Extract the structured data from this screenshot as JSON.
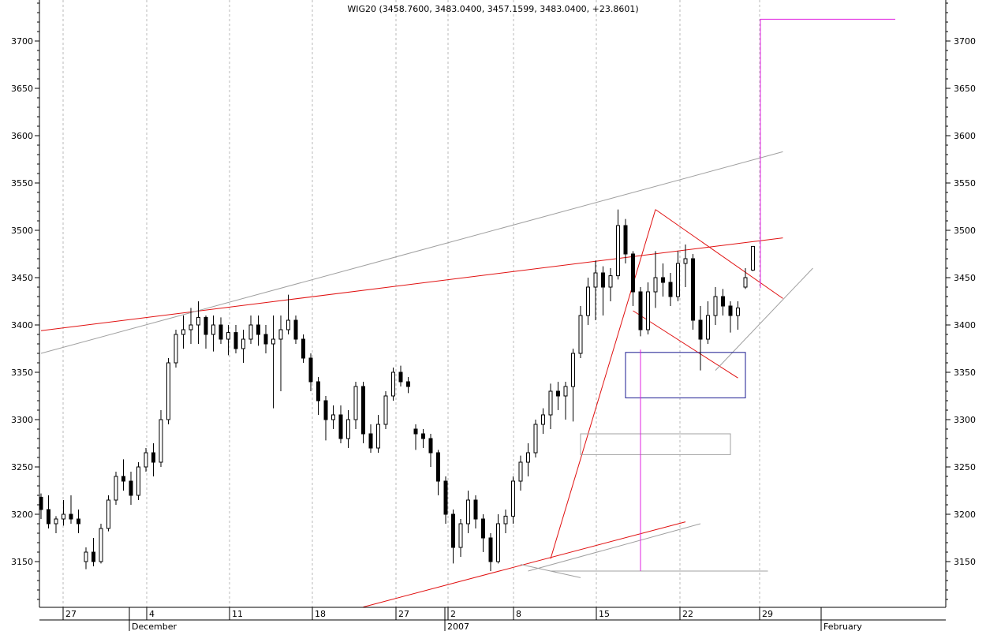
{
  "chart_data": {
    "type": "candlestick",
    "title": "WIG20 (3458.7600, 3483.0400, 3457.1599, 3483.0400, +23.8601)",
    "ylim": [
      3100,
      3750
    ],
    "y_ticks": [
      3150,
      3200,
      3250,
      3300,
      3350,
      3400,
      3450,
      3500,
      3550,
      3600,
      3650,
      3700
    ],
    "x_day_ticks": [
      "27",
      "4",
      "11",
      "18",
      "27",
      "2",
      "8",
      "15",
      "22",
      "29"
    ],
    "x_month_labels": [
      "December",
      "2007",
      "February"
    ],
    "grid": "vertical-dashed",
    "colors": {
      "price": "#000000",
      "trendline_red": "#e01010",
      "trendline_gray": "#a0a0a0",
      "box_blue": "#1a1a90",
      "magenta": "#e020e0"
    },
    "trend_lines": [
      {
        "color": "red",
        "from": [
          0,
          3394
        ],
        "to": [
          99,
          3492
        ]
      },
      {
        "color": "red",
        "from": [
          43,
          3102
        ],
        "to": [
          86,
          3192
        ]
      },
      {
        "color": "red",
        "from": [
          68,
          3153
        ],
        "to": [
          82,
          3522
        ]
      },
      {
        "color": "red",
        "from": [
          82,
          3522
        ],
        "to": [
          99,
          3428
        ]
      },
      {
        "color": "red",
        "from": [
          79,
          3415
        ],
        "to": [
          93,
          3344
        ]
      },
      {
        "color": "gray",
        "from": [
          0,
          3370
        ],
        "to": [
          99,
          3583
        ]
      },
      {
        "color": "gray",
        "from": [
          90,
          3352
        ],
        "to": [
          103,
          3460
        ]
      },
      {
        "color": "gray",
        "from": [
          65,
          3140
        ],
        "to": [
          88,
          3190
        ]
      },
      {
        "color": "gray",
        "from": [
          64,
          3147
        ],
        "to": [
          72,
          3133
        ]
      },
      {
        "color": "gray",
        "from": [
          68,
          3140
        ],
        "to": [
          97,
          3140
        ]
      }
    ],
    "boxes": [
      {
        "color": "blue",
        "x": [
          78,
          94
        ],
        "y": [
          3323,
          3371
        ]
      },
      {
        "color": "gray",
        "x": [
          72,
          92
        ],
        "y": [
          3263,
          3285
        ]
      }
    ],
    "projections": [
      {
        "color": "magenta",
        "points": [
          [
            80,
            3140
          ],
          [
            80,
            3374
          ]
        ]
      },
      {
        "color": "magenta",
        "points": [
          [
            96,
            3439
          ],
          [
            96,
            3723
          ],
          [
            114,
            3723
          ]
        ]
      }
    ],
    "series": [
      {
        "values": [
          [
            3218,
            3222,
            3195,
            3205
          ],
          [
            3205,
            3220,
            3185,
            3190
          ],
          [
            3190,
            3198,
            3180,
            3195
          ],
          [
            3195,
            3215,
            3188,
            3200
          ],
          [
            3200,
            3220,
            3190,
            3195
          ],
          [
            3195,
            3205,
            3180,
            3190
          ],
          [
            3150,
            3165,
            3142,
            3160
          ],
          [
            3160,
            3175,
            3145,
            3150
          ],
          [
            3150,
            3190,
            3148,
            3185
          ],
          [
            3185,
            3220,
            3182,
            3215
          ],
          [
            3215,
            3245,
            3210,
            3240
          ],
          [
            3240,
            3258,
            3225,
            3235
          ],
          [
            3235,
            3245,
            3210,
            3220
          ],
          [
            3220,
            3255,
            3215,
            3250
          ],
          [
            3250,
            3270,
            3245,
            3265
          ],
          [
            3265,
            3275,
            3240,
            3255
          ],
          [
            3255,
            3310,
            3250,
            3300
          ],
          [
            3300,
            3365,
            3295,
            3360
          ],
          [
            3360,
            3395,
            3355,
            3390
          ],
          [
            3390,
            3410,
            3375,
            3395
          ],
          [
            3395,
            3418,
            3380,
            3400
          ],
          [
            3400,
            3425,
            3380,
            3408
          ],
          [
            3408,
            3410,
            3375,
            3390
          ],
          [
            3390,
            3410,
            3372,
            3400
          ],
          [
            3400,
            3408,
            3380,
            3385
          ],
          [
            3385,
            3400,
            3368,
            3392
          ],
          [
            3392,
            3400,
            3370,
            3375
          ],
          [
            3375,
            3395,
            3360,
            3385
          ],
          [
            3385,
            3410,
            3380,
            3400
          ],
          [
            3400,
            3410,
            3378,
            3390
          ],
          [
            3390,
            3400,
            3370,
            3380
          ],
          [
            3380,
            3410,
            3312,
            3385
          ],
          [
            3385,
            3410,
            3330,
            3395
          ],
          [
            3395,
            3432,
            3390,
            3405
          ],
          [
            3405,
            3410,
            3380,
            3385
          ],
          [
            3385,
            3390,
            3360,
            3365
          ],
          [
            3365,
            3370,
            3330,
            3340
          ],
          [
            3340,
            3345,
            3305,
            3320
          ],
          [
            3320,
            3325,
            3278,
            3300
          ],
          [
            3300,
            3315,
            3290,
            3305
          ],
          [
            3305,
            3315,
            3275,
            3280
          ],
          [
            3280,
            3310,
            3270,
            3300
          ],
          [
            3300,
            3340,
            3290,
            3335
          ],
          [
            3335,
            3340,
            3275,
            3285
          ],
          [
            3285,
            3295,
            3265,
            3270
          ],
          [
            3270,
            3305,
            3265,
            3295
          ],
          [
            3295,
            3330,
            3290,
            3325
          ],
          [
            3325,
            3355,
            3320,
            3350
          ],
          [
            3350,
            3357,
            3335,
            3340
          ],
          [
            3340,
            3345,
            3328,
            3335
          ],
          [
            3290,
            3295,
            3268,
            3285
          ],
          [
            3285,
            3290,
            3270,
            3280
          ],
          [
            3280,
            3285,
            3250,
            3265
          ],
          [
            3265,
            3268,
            3220,
            3235
          ],
          [
            3235,
            3240,
            3190,
            3200
          ],
          [
            3200,
            3205,
            3148,
            3165
          ],
          [
            3165,
            3195,
            3155,
            3190
          ],
          [
            3190,
            3225,
            3180,
            3215
          ],
          [
            3215,
            3220,
            3185,
            3195
          ],
          [
            3195,
            3200,
            3160,
            3175
          ],
          [
            3175,
            3180,
            3140,
            3150
          ],
          [
            3150,
            3200,
            3148,
            3190
          ],
          [
            3190,
            3205,
            3180,
            3198
          ],
          [
            3198,
            3240,
            3190,
            3235
          ],
          [
            3235,
            3262,
            3225,
            3255
          ],
          [
            3255,
            3275,
            3240,
            3265
          ],
          [
            3265,
            3300,
            3260,
            3295
          ],
          [
            3295,
            3312,
            3285,
            3305
          ],
          [
            3305,
            3338,
            3290,
            3330
          ],
          [
            3330,
            3340,
            3310,
            3325
          ],
          [
            3325,
            3340,
            3300,
            3335
          ],
          [
            3335,
            3375,
            3298,
            3370
          ],
          [
            3370,
            3420,
            3365,
            3410
          ],
          [
            3410,
            3450,
            3400,
            3440
          ],
          [
            3440,
            3468,
            3405,
            3455
          ],
          [
            3455,
            3462,
            3410,
            3440
          ],
          [
            3440,
            3460,
            3425,
            3452
          ],
          [
            3452,
            3522,
            3448,
            3505
          ],
          [
            3505,
            3512,
            3465,
            3475
          ],
          [
            3475,
            3478,
            3420,
            3435
          ],
          [
            3435,
            3440,
            3388,
            3395
          ],
          [
            3395,
            3445,
            3390,
            3435
          ],
          [
            3435,
            3478,
            3418,
            3450
          ],
          [
            3450,
            3465,
            3430,
            3445
          ],
          [
            3445,
            3455,
            3420,
            3430
          ],
          [
            3430,
            3478,
            3425,
            3465
          ],
          [
            3465,
            3485,
            3440,
            3470
          ],
          [
            3470,
            3475,
            3395,
            3405
          ],
          [
            3405,
            3420,
            3352,
            3385
          ],
          [
            3385,
            3425,
            3380,
            3410
          ],
          [
            3410,
            3440,
            3400,
            3430
          ],
          [
            3430,
            3438,
            3410,
            3420
          ],
          [
            3420,
            3425,
            3392,
            3410
          ],
          [
            3410,
            3425,
            3395,
            3418
          ],
          [
            3440,
            3460,
            3438,
            3450
          ],
          [
            3458,
            3483,
            3457,
            3483
          ]
        ]
      }
    ]
  }
}
